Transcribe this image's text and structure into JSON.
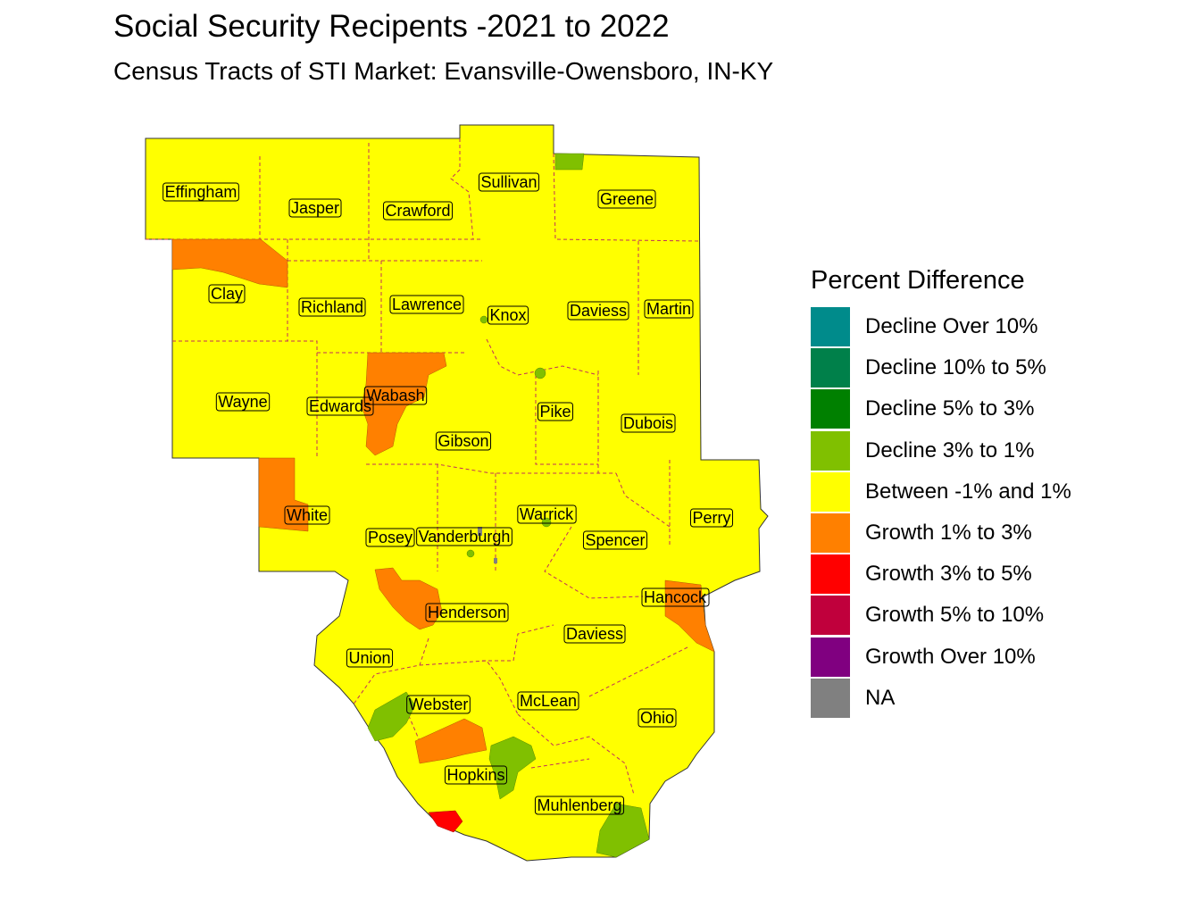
{
  "title": "Social Security Recipents -2021 to 2022",
  "subtitle": "Census Tracts of STI Market: Evansville-Owensboro, IN-KY",
  "legend": {
    "title": "Percent Difference",
    "items": [
      {
        "label": "Decline Over 10%",
        "color": "#008B8B"
      },
      {
        "label": "Decline 10% to 5%",
        "color": "#00804A"
      },
      {
        "label": "Decline 5% to 3%",
        "color": "#008000"
      },
      {
        "label": "Decline 3% to 1%",
        "color": "#80C000"
      },
      {
        "label": "Between -1% and 1%",
        "color": "#FFFF00"
      },
      {
        "label": "Growth 1% to 3%",
        "color": "#FF8000"
      },
      {
        "label": "Growth 3% to 5%",
        "color": "#FF0000"
      },
      {
        "label": "Growth 5% to 10%",
        "color": "#C0003C"
      },
      {
        "label": "Growth Over 10%",
        "color": "#800080"
      },
      {
        "label": "NA",
        "color": "#808080"
      }
    ]
  },
  "counties": [
    "Effingham",
    "Jasper",
    "Crawford",
    "Sullivan",
    "Greene",
    "Clay",
    "Richland",
    "Lawrence",
    "Knox",
    "Daviess",
    "Martin",
    "Wayne",
    "Edwards",
    "Wabash",
    "Pike",
    "Dubois",
    "Gibson",
    "White",
    "Posey",
    "Vanderburgh",
    "Warrick",
    "Spencer",
    "Perry",
    "Henderson",
    "Hancock",
    "Daviess",
    "Union",
    "Webster",
    "McLean",
    "Ohio",
    "Hopkins",
    "Muhlenberg"
  ]
}
